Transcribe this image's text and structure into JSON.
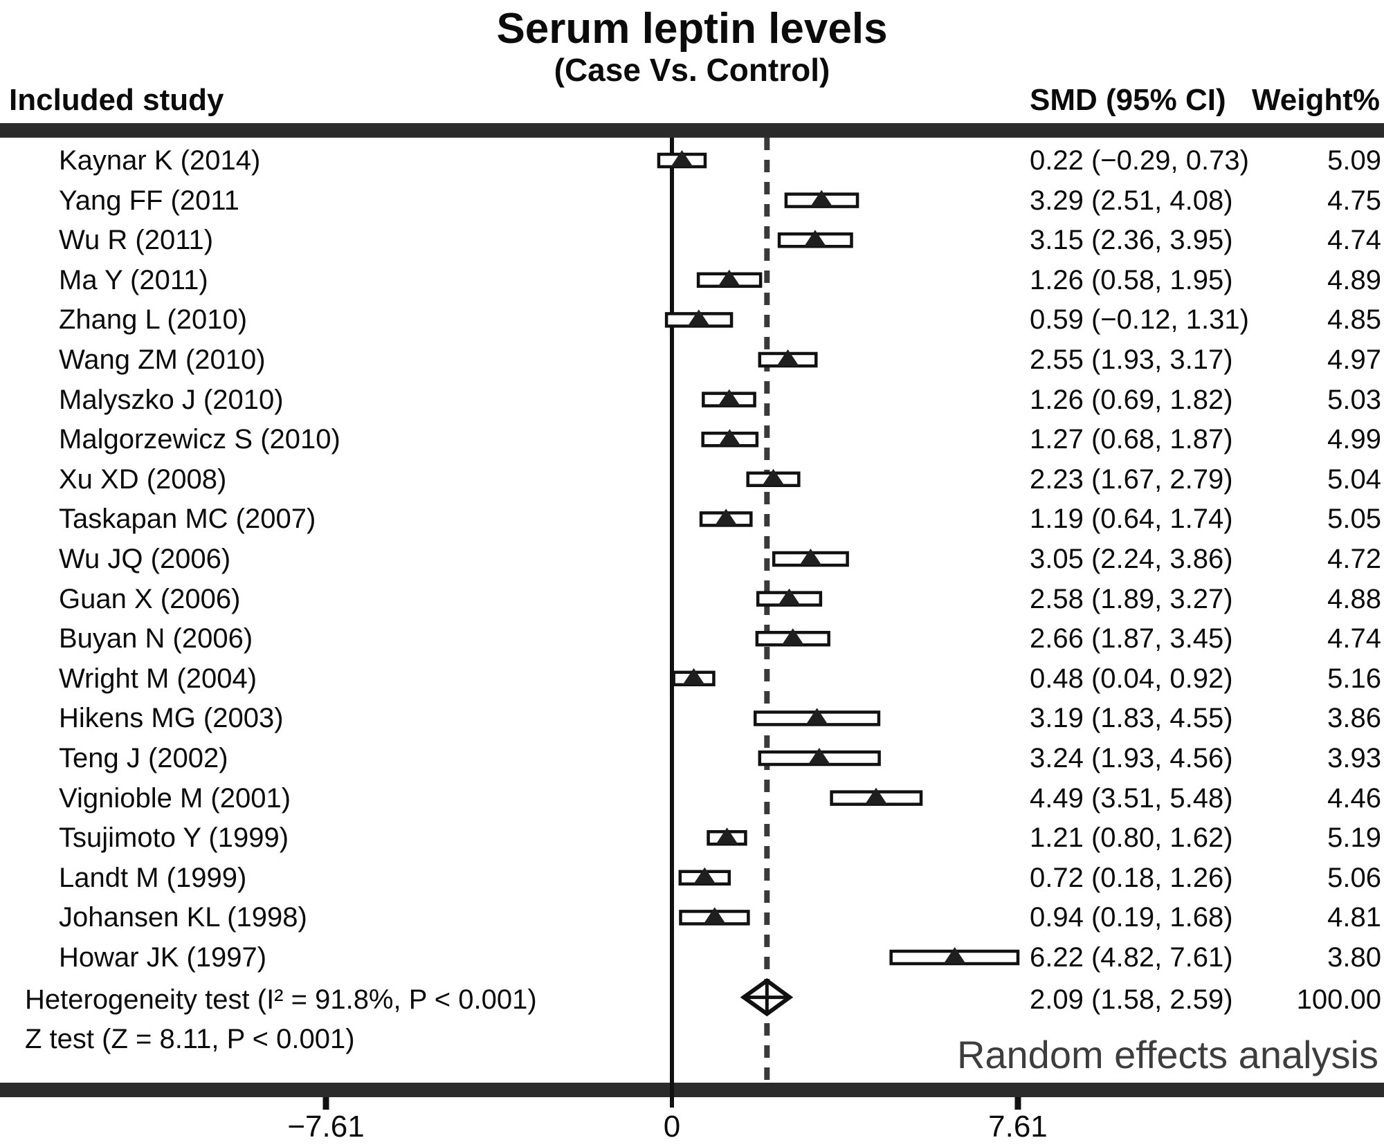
{
  "title": "Serum leptin levels",
  "subtitle": "(Case Vs. Control)",
  "columns": {
    "study": "Included study",
    "smd": "SMD (95% CI)",
    "weight": "Weight%"
  },
  "footer_note": "Random effects analysis",
  "colors": {
    "ink": "#111111",
    "band": "#2b2b2b",
    "marker_fill": "#ffffff",
    "triangle": "#1f1f1f",
    "dashed_line": "#3a3a3a",
    "footer_text": "#3d3d3d"
  },
  "chart_data": {
    "type": "forest",
    "effect_measure": "SMD",
    "x_axis": {
      "tick_values": [
        -7.61,
        0,
        7.61
      ],
      "tick_labels": [
        "−7.61",
        "0",
        "7.61"
      ],
      "zero_line": 0,
      "pooled_dashed_line": 2.09
    },
    "studies": [
      {
        "label": "Kaynar K (2014)",
        "smd": 0.22,
        "lo": -0.29,
        "hi": 0.73,
        "smd_text": "0.22 (−0.29, 0.73)",
        "weight": "5.09"
      },
      {
        "label": "Yang FF (2011",
        "smd": 3.29,
        "lo": 2.51,
        "hi": 4.08,
        "smd_text": "3.29 (2.51, 4.08)",
        "weight": "4.75"
      },
      {
        "label": "Wu R (2011)",
        "smd": 3.15,
        "lo": 2.36,
        "hi": 3.95,
        "smd_text": "3.15 (2.36, 3.95)",
        "weight": "4.74"
      },
      {
        "label": "Ma Y (2011)",
        "smd": 1.26,
        "lo": 0.58,
        "hi": 1.95,
        "smd_text": "1.26 (0.58, 1.95)",
        "weight": "4.89"
      },
      {
        "label": "Zhang L (2010)",
        "smd": 0.59,
        "lo": -0.12,
        "hi": 1.31,
        "smd_text": "0.59 (−0.12, 1.31)",
        "weight": "4.85"
      },
      {
        "label": "Wang ZM (2010)",
        "smd": 2.55,
        "lo": 1.93,
        "hi": 3.17,
        "smd_text": "2.55 (1.93, 3.17)",
        "weight": "4.97"
      },
      {
        "label": "Malyszko J (2010)",
        "smd": 1.26,
        "lo": 0.69,
        "hi": 1.82,
        "smd_text": "1.26 (0.69, 1.82)",
        "weight": "5.03"
      },
      {
        "label": "Malgorzewicz S (2010)",
        "smd": 1.27,
        "lo": 0.68,
        "hi": 1.87,
        "smd_text": "1.27 (0.68, 1.87)",
        "weight": "4.99"
      },
      {
        "label": "Xu XD (2008)",
        "smd": 2.23,
        "lo": 1.67,
        "hi": 2.79,
        "smd_text": "2.23 (1.67, 2.79)",
        "weight": "5.04"
      },
      {
        "label": "Taskapan MC (2007)",
        "smd": 1.19,
        "lo": 0.64,
        "hi": 1.74,
        "smd_text": "1.19 (0.64, 1.74)",
        "weight": "5.05"
      },
      {
        "label": "Wu JQ (2006)",
        "smd": 3.05,
        "lo": 2.24,
        "hi": 3.86,
        "smd_text": "3.05 (2.24, 3.86)",
        "weight": "4.72"
      },
      {
        "label": "Guan X (2006)",
        "smd": 2.58,
        "lo": 1.89,
        "hi": 3.27,
        "smd_text": "2.58 (1.89, 3.27)",
        "weight": "4.88"
      },
      {
        "label": "Buyan N (2006)",
        "smd": 2.66,
        "lo": 1.87,
        "hi": 3.45,
        "smd_text": "2.66 (1.87, 3.45)",
        "weight": "4.74"
      },
      {
        "label": "Wright M (2004)",
        "smd": 0.48,
        "lo": 0.04,
        "hi": 0.92,
        "smd_text": "0.48 (0.04, 0.92)",
        "weight": "5.16"
      },
      {
        "label": "Hikens MG (2003)",
        "smd": 3.19,
        "lo": 1.83,
        "hi": 4.55,
        "smd_text": "3.19 (1.83, 4.55)",
        "weight": "3.86"
      },
      {
        "label": "Teng J (2002)",
        "smd": 3.24,
        "lo": 1.93,
        "hi": 4.56,
        "smd_text": "3.24 (1.93, 4.56)",
        "weight": "3.93"
      },
      {
        "label": "Vignioble M (2001)",
        "smd": 4.49,
        "lo": 3.51,
        "hi": 5.48,
        "smd_text": "4.49 (3.51, 5.48)",
        "weight": "4.46"
      },
      {
        "label": "Tsujimoto Y (1999)",
        "smd": 1.21,
        "lo": 0.8,
        "hi": 1.62,
        "smd_text": "1.21 (0.80, 1.62)",
        "weight": "5.19"
      },
      {
        "label": "Landt M (1999)",
        "smd": 0.72,
        "lo": 0.18,
        "hi": 1.26,
        "smd_text": "0.72 (0.18, 1.26)",
        "weight": "5.06"
      },
      {
        "label": "Johansen KL (1998)",
        "smd": 0.94,
        "lo": 0.19,
        "hi": 1.68,
        "smd_text": "0.94 (0.19, 1.68)",
        "weight": "4.81"
      },
      {
        "label": "Howar JK (1997)",
        "smd": 6.22,
        "lo": 4.82,
        "hi": 7.61,
        "smd_text": "6.22 (4.82, 7.61)",
        "weight": "3.80"
      }
    ],
    "summary": {
      "het_label": "Heterogeneity test (I² = 91.8%, P < 0.001)",
      "z_label": "Z test (Z = 8.11, P < 0.001)",
      "smd": 2.09,
      "lo": 1.58,
      "hi": 2.59,
      "smd_text": "2.09 (1.58, 2.59)",
      "weight": "100.00"
    }
  }
}
